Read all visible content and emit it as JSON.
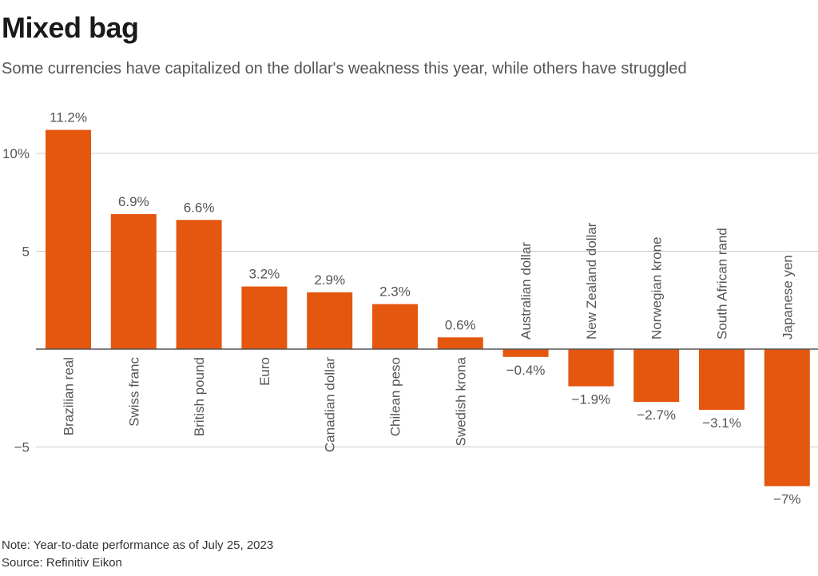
{
  "header": {
    "title": "Mixed bag",
    "subtitle": "Some currencies have capitalized on the dollar's weakness this year, while others have struggled"
  },
  "footer": {
    "note": "Note: Year-to-date performance as of July 25, 2023",
    "source": "Source: Refinitiv Eikon"
  },
  "colors": {
    "bar": "#e5560f",
    "grid": "#cccccc",
    "zero_line": "#555555",
    "text": "#555555"
  },
  "chart_data": {
    "type": "bar",
    "title": "Mixed bag",
    "subtitle": "Some currencies have capitalized on the dollar's weakness this year, while others have struggled",
    "xlabel": "",
    "ylabel": "",
    "ylim": [
      -7.5,
      12
    ],
    "grid": true,
    "legend": "none",
    "yticks": [
      {
        "value": 10,
        "label": "10%"
      },
      {
        "value": 5,
        "label": "5"
      },
      {
        "value": -5,
        "label": "−5"
      }
    ],
    "categories": [
      "Brazilian real",
      "Swiss franc",
      "British pound",
      "Euro",
      "Canadian dollar",
      "Chilean peso",
      "Swedish krona",
      "Australian dollar",
      "New Zealand dollar",
      "Norwegian krone",
      "South African rand",
      "Japanese yen"
    ],
    "values": [
      11.2,
      6.9,
      6.6,
      3.2,
      2.9,
      2.3,
      0.6,
      -0.4,
      -1.9,
      -2.7,
      -3.1,
      -7.0
    ],
    "data_labels": [
      "11.2%",
      "6.9%",
      "6.6%",
      "3.2%",
      "2.9%",
      "2.3%",
      "0.6%",
      "−0.4%",
      "−1.9%",
      "−2.7%",
      "−3.1%",
      "−7%"
    ]
  }
}
